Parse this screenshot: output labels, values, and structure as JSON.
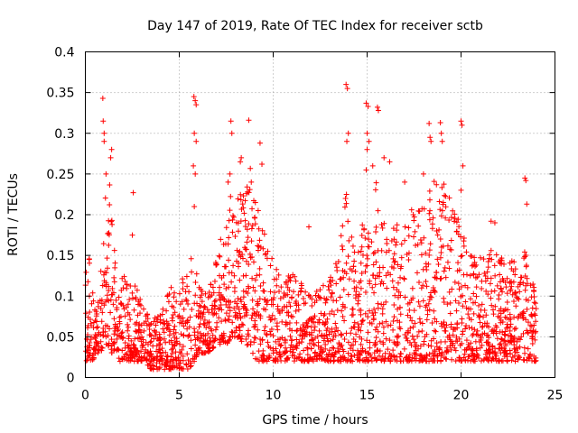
{
  "chart_data": {
    "type": "scatter",
    "title": "Day 147 of 2019, Rate Of TEC Index for receiver sctb",
    "xlabel": "GPS time / hours",
    "ylabel": "ROTI / TECUs",
    "xlim": [
      0,
      25
    ],
    "ylim": [
      0,
      0.4
    ],
    "x_ticks": [
      0,
      5,
      10,
      15,
      20,
      25
    ],
    "x_tick_labels": [
      "0",
      "5",
      "10",
      "15",
      "20",
      "25"
    ],
    "y_ticks": [
      0,
      0.05,
      0.1,
      0.15,
      0.2,
      0.25,
      0.3,
      0.35,
      0.4
    ],
    "y_tick_labels": [
      "0",
      "0.05",
      "0.1",
      "0.15",
      "0.2",
      "0.25",
      "0.3",
      "0.35",
      "0.4"
    ],
    "grid": true,
    "marker": "plus",
    "color": "#ff0000",
    "series": [
      {
        "name": "ROTI",
        "envelope": {
          "x": [
            0.0,
            0.2,
            0.4,
            0.6,
            0.8,
            1.0,
            1.2,
            1.4,
            1.6,
            1.8,
            2.0,
            2.3,
            2.6,
            3.0,
            3.5,
            4.0,
            4.5,
            5.0,
            5.5,
            5.8,
            6.0,
            6.5,
            7.0,
            7.5,
            7.8,
            8.0,
            8.5,
            8.8,
            9.0,
            9.3,
            9.6,
            10.0,
            10.5,
            11.0,
            11.5,
            12.0,
            12.5,
            13.0,
            13.5,
            13.9,
            14.0,
            14.5,
            15.0,
            15.5,
            16.0,
            16.5,
            17.0,
            17.5,
            18.0,
            18.5,
            19.0,
            19.5,
            20.0,
            20.5,
            21.0,
            21.5,
            22.0,
            22.5,
            23.0,
            23.5,
            24.0
          ],
          "upper": [
            0.14,
            0.16,
            0.11,
            0.08,
            0.12,
            0.2,
            0.26,
            0.22,
            0.14,
            0.1,
            0.14,
            0.12,
            0.13,
            0.09,
            0.07,
            0.08,
            0.11,
            0.12,
            0.13,
            0.2,
            0.12,
            0.1,
            0.15,
            0.2,
            0.24,
            0.22,
            0.23,
            0.26,
            0.22,
            0.2,
            0.17,
            0.15,
            0.12,
            0.14,
            0.12,
            0.1,
            0.11,
            0.12,
            0.15,
            0.24,
            0.2,
            0.16,
            0.22,
            0.26,
            0.2,
            0.19,
            0.2,
            0.21,
            0.22,
            0.25,
            0.26,
            0.22,
            0.19,
            0.15,
            0.15,
            0.16,
            0.15,
            0.14,
            0.15,
            0.16,
            0.1
          ],
          "lower": [
            0.02,
            0.02,
            0.02,
            0.03,
            0.03,
            0.04,
            0.04,
            0.03,
            0.03,
            0.02,
            0.02,
            0.02,
            0.02,
            0.02,
            0.01,
            0.01,
            0.01,
            0.01,
            0.01,
            0.02,
            0.03,
            0.03,
            0.04,
            0.04,
            0.05,
            0.05,
            0.04,
            0.04,
            0.02,
            0.02,
            0.02,
            0.02,
            0.02,
            0.02,
            0.02,
            0.02,
            0.02,
            0.02,
            0.02,
            0.02,
            0.02,
            0.02,
            0.02,
            0.02,
            0.02,
            0.02,
            0.02,
            0.02,
            0.02,
            0.02,
            0.02,
            0.02,
            0.02,
            0.02,
            0.02,
            0.02,
            0.02,
            0.02,
            0.02,
            0.02,
            0.02
          ]
        },
        "outliers": [
          {
            "x": 0.93,
            "y": 0.343
          },
          {
            "x": 0.95,
            "y": 0.315
          },
          {
            "x": 1.0,
            "y": 0.3
          },
          {
            "x": 1.0,
            "y": 0.29
          },
          {
            "x": 1.4,
            "y": 0.28
          },
          {
            "x": 1.35,
            "y": 0.27
          },
          {
            "x": 1.1,
            "y": 0.25
          },
          {
            "x": 2.55,
            "y": 0.227
          },
          {
            "x": 2.5,
            "y": 0.175
          },
          {
            "x": 5.78,
            "y": 0.345
          },
          {
            "x": 5.85,
            "y": 0.34
          },
          {
            "x": 5.9,
            "y": 0.335
          },
          {
            "x": 5.8,
            "y": 0.3
          },
          {
            "x": 5.9,
            "y": 0.29
          },
          {
            "x": 5.75,
            "y": 0.26
          },
          {
            "x": 5.85,
            "y": 0.25
          },
          {
            "x": 5.8,
            "y": 0.21
          },
          {
            "x": 7.75,
            "y": 0.315
          },
          {
            "x": 7.8,
            "y": 0.3
          },
          {
            "x": 8.7,
            "y": 0.316
          },
          {
            "x": 8.3,
            "y": 0.27
          },
          {
            "x": 8.25,
            "y": 0.265
          },
          {
            "x": 7.7,
            "y": 0.25
          },
          {
            "x": 7.6,
            "y": 0.24
          },
          {
            "x": 9.3,
            "y": 0.288
          },
          {
            "x": 9.4,
            "y": 0.262
          },
          {
            "x": 9.2,
            "y": 0.205
          },
          {
            "x": 11.9,
            "y": 0.185
          },
          {
            "x": 13.88,
            "y": 0.36
          },
          {
            "x": 13.95,
            "y": 0.355
          },
          {
            "x": 14.0,
            "y": 0.3
          },
          {
            "x": 13.92,
            "y": 0.29
          },
          {
            "x": 13.9,
            "y": 0.225
          },
          {
            "x": 13.85,
            "y": 0.22
          },
          {
            "x": 14.95,
            "y": 0.337
          },
          {
            "x": 15.05,
            "y": 0.333
          },
          {
            "x": 15.55,
            "y": 0.332
          },
          {
            "x": 15.6,
            "y": 0.328
          },
          {
            "x": 15.0,
            "y": 0.3
          },
          {
            "x": 15.1,
            "y": 0.29
          },
          {
            "x": 15.0,
            "y": 0.28
          },
          {
            "x": 15.9,
            "y": 0.27
          },
          {
            "x": 16.2,
            "y": 0.265
          },
          {
            "x": 15.3,
            "y": 0.26
          },
          {
            "x": 14.95,
            "y": 0.255
          },
          {
            "x": 18.3,
            "y": 0.312
          },
          {
            "x": 18.35,
            "y": 0.295
          },
          {
            "x": 18.4,
            "y": 0.29
          },
          {
            "x": 18.9,
            "y": 0.313
          },
          {
            "x": 18.95,
            "y": 0.3
          },
          {
            "x": 19.0,
            "y": 0.29
          },
          {
            "x": 20.0,
            "y": 0.315
          },
          {
            "x": 20.05,
            "y": 0.31
          },
          {
            "x": 20.1,
            "y": 0.26
          },
          {
            "x": 20.0,
            "y": 0.23
          },
          {
            "x": 18.0,
            "y": 0.25
          },
          {
            "x": 17.0,
            "y": 0.24
          },
          {
            "x": 23.4,
            "y": 0.245
          },
          {
            "x": 23.45,
            "y": 0.242
          },
          {
            "x": 23.5,
            "y": 0.213
          },
          {
            "x": 21.6,
            "y": 0.192
          },
          {
            "x": 21.8,
            "y": 0.19
          }
        ]
      }
    ]
  }
}
